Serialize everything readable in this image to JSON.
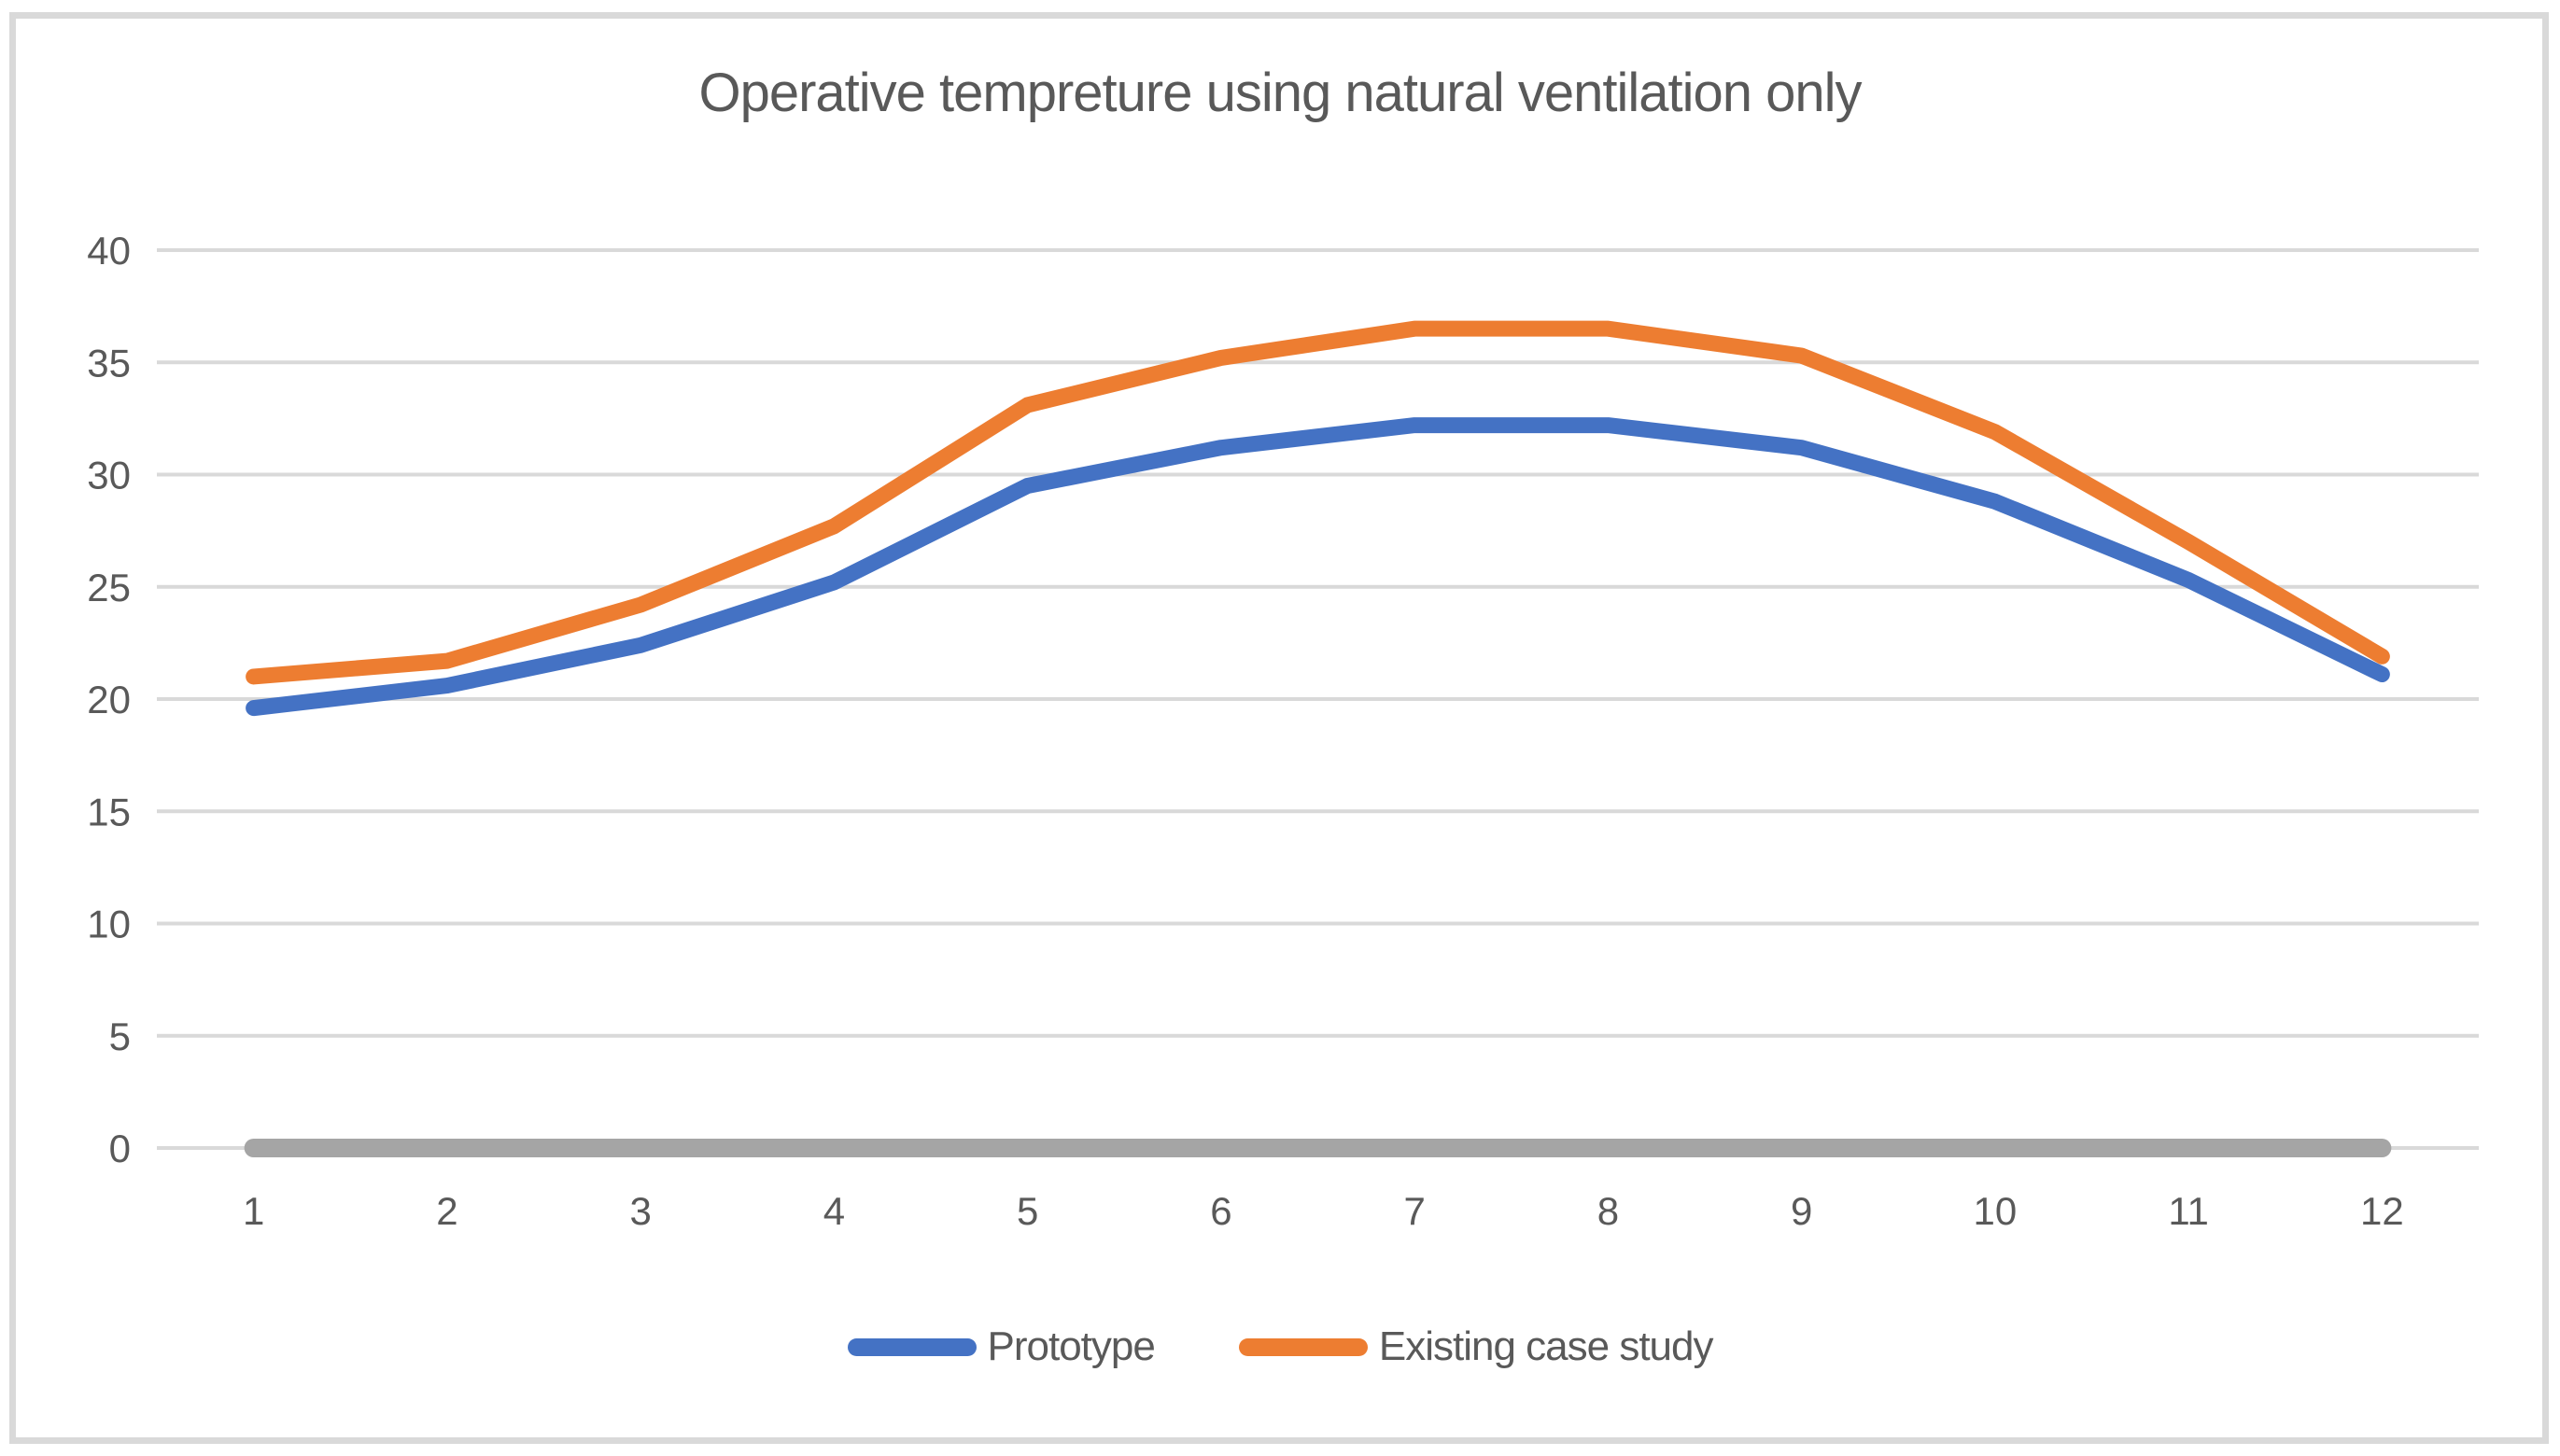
{
  "title": "Operative tempreture using natural ventilation only",
  "legend": [
    {
      "label": "Prototype",
      "color": "#4472C4"
    },
    {
      "label": "Existing case study",
      "color": "#ED7D31"
    }
  ],
  "colors": {
    "gridline": "#D9D9D9",
    "frame_border": "#D9D9D9",
    "axis_text": "#595959",
    "title_text": "#595959",
    "background": "#FFFFFF",
    "zero_baseline_series": "#A5A5A5"
  },
  "chart_data": {
    "type": "line",
    "title": "Operative tempreture using natural ventilation only",
    "xlabel": "",
    "ylabel": "",
    "categories": [
      1,
      2,
      3,
      4,
      5,
      6,
      7,
      8,
      9,
      10,
      11,
      12
    ],
    "series": [
      {
        "name": "Prototype",
        "color": "#4472C4",
        "in_legend": true,
        "values": [
          19.6,
          20.6,
          22.4,
          25.2,
          29.5,
          31.2,
          32.2,
          32.2,
          31.2,
          28.8,
          25.3,
          21.1
        ]
      },
      {
        "name": "Existing case study",
        "color": "#ED7D31",
        "in_legend": true,
        "values": [
          21.0,
          21.7,
          24.2,
          27.7,
          33.1,
          35.2,
          36.5,
          36.5,
          35.3,
          31.9,
          27.0,
          21.9
        ]
      },
      {
        "name": "unlabeled-zero-baseline",
        "color": "#A5A5A5",
        "in_legend": false,
        "values": [
          0,
          0,
          0,
          0,
          0,
          0,
          0,
          0,
          0,
          0,
          0,
          0
        ]
      }
    ],
    "ylim": [
      0,
      40
    ],
    "yticks": [
      0,
      5,
      10,
      15,
      20,
      25,
      30,
      35,
      40
    ],
    "grid": "horizontal",
    "legend_position": "bottom"
  }
}
